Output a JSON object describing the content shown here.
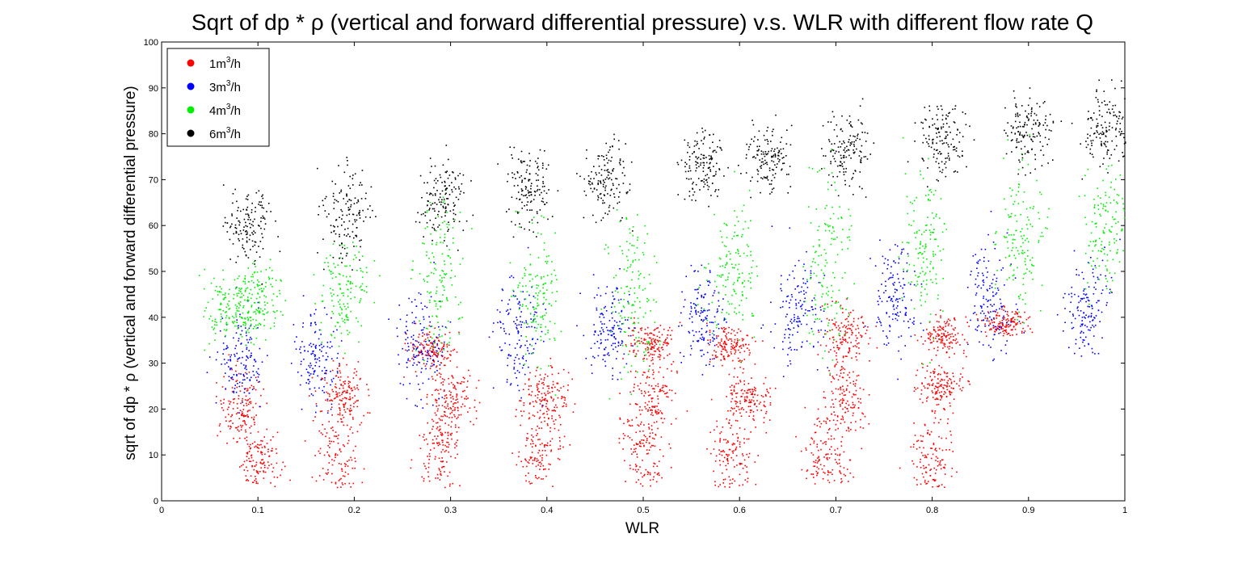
{
  "chart_data": {
    "type": "scatter",
    "title": "Sqrt of dp * ρ (vertical and forward differential pressure) v.s. WLR with different flow rate Q",
    "xlabel": "WLR",
    "ylabel": "sqrt of dp * ρ (vertical and forward differential pressure)",
    "xlim": [
      0,
      1
    ],
    "ylim": [
      0,
      100
    ],
    "x_ticks": [
      "0",
      "0.1",
      "0.2",
      "0.3",
      "0.4",
      "0.5",
      "0.6",
      "0.7",
      "0.8",
      "0.9",
      "1"
    ],
    "y_ticks": [
      "0",
      "10",
      "20",
      "30",
      "40",
      "50",
      "60",
      "70",
      "80",
      "90",
      "100"
    ],
    "grid": false,
    "legend_position": "top-left",
    "series": [
      {
        "name": "1m3/h",
        "label_base": "1m",
        "label_sup": "3",
        "label_unit": "/h",
        "color": "#ff0000",
        "clusters": [
          {
            "wlr": 0.08,
            "y_mean": 21,
            "y_spread": 4
          },
          {
            "wlr": 0.1,
            "y_mean": 9,
            "y_spread": 4
          },
          {
            "wlr": 0.18,
            "y_mean": 12,
            "y_spread": 7
          },
          {
            "wlr": 0.19,
            "y_mean": 23,
            "y_spread": 3
          },
          {
            "wlr": 0.29,
            "y_mean": 11,
            "y_spread": 5
          },
          {
            "wlr": 0.3,
            "y_mean": 23,
            "y_spread": 3
          },
          {
            "wlr": 0.28,
            "y_mean": 33,
            "y_spread": 2
          },
          {
            "wlr": 0.39,
            "y_mean": 11,
            "y_spread": 5
          },
          {
            "wlr": 0.4,
            "y_mean": 23,
            "y_spread": 3
          },
          {
            "wlr": 0.5,
            "y_mean": 10,
            "y_spread": 6
          },
          {
            "wlr": 0.51,
            "y_mean": 23,
            "y_spread": 4
          },
          {
            "wlr": 0.51,
            "y_mean": 35,
            "y_spread": 2
          },
          {
            "wlr": 0.59,
            "y_mean": 9,
            "y_spread": 5
          },
          {
            "wlr": 0.61,
            "y_mean": 23,
            "y_spread": 3
          },
          {
            "wlr": 0.59,
            "y_mean": 34,
            "y_spread": 2
          },
          {
            "wlr": 0.69,
            "y_mean": 10,
            "y_spread": 5
          },
          {
            "wlr": 0.71,
            "y_mean": 22,
            "y_spread": 4
          },
          {
            "wlr": 0.71,
            "y_mean": 36,
            "y_spread": 3
          },
          {
            "wlr": 0.8,
            "y_mean": 10,
            "y_spread": 5
          },
          {
            "wlr": 0.81,
            "y_mean": 25,
            "y_spread": 2
          },
          {
            "wlr": 0.81,
            "y_mean": 36,
            "y_spread": 2
          },
          {
            "wlr": 0.875,
            "y_mean": 39,
            "y_spread": 1.5
          }
        ]
      },
      {
        "name": "3m3/h",
        "label_base": "3m",
        "label_sup": "3",
        "label_unit": "/h",
        "color": "#0000ff",
        "clusters": [
          {
            "wlr": 0.08,
            "y_mean": 32,
            "y_spread": 5
          },
          {
            "wlr": 0.16,
            "y_mean": 32,
            "y_spread": 5
          },
          {
            "wlr": 0.27,
            "y_mean": 34,
            "y_spread": 6
          },
          {
            "wlr": 0.37,
            "y_mean": 37,
            "y_spread": 6
          },
          {
            "wlr": 0.46,
            "y_mean": 38,
            "y_spread": 5
          },
          {
            "wlr": 0.56,
            "y_mean": 40,
            "y_spread": 6
          },
          {
            "wlr": 0.66,
            "y_mean": 42,
            "y_spread": 6
          },
          {
            "wlr": 0.76,
            "y_mean": 44,
            "y_spread": 6
          },
          {
            "wlr": 0.86,
            "y_mean": 45,
            "y_spread": 6
          },
          {
            "wlr": 0.96,
            "y_mean": 42,
            "y_spread": 6
          }
        ]
      },
      {
        "name": "4m3/h",
        "label_base": "4m",
        "label_sup": "3",
        "label_unit": "/h",
        "color": "#00ee00",
        "clusters": [
          {
            "wlr": 0.07,
            "y_mean": 42,
            "y_spread": 4
          },
          {
            "wlr": 0.1,
            "y_mean": 44,
            "y_spread": 4
          },
          {
            "wlr": 0.19,
            "y_mean": 45,
            "y_spread": 5
          },
          {
            "wlr": 0.29,
            "y_mean": 48,
            "y_spread": 8
          },
          {
            "wlr": 0.39,
            "y_mean": 45,
            "y_spread": 8
          },
          {
            "wlr": 0.49,
            "y_mean": 45,
            "y_spread": 9
          },
          {
            "wlr": 0.59,
            "y_mean": 50,
            "y_spread": 8
          },
          {
            "wlr": 0.69,
            "y_mean": 52,
            "y_spread": 9
          },
          {
            "wlr": 0.79,
            "y_mean": 55,
            "y_spread": 9
          },
          {
            "wlr": 0.89,
            "y_mean": 58,
            "y_spread": 8
          },
          {
            "wlr": 0.98,
            "y_mean": 60,
            "y_spread": 7
          }
        ]
      },
      {
        "name": "6m3/h",
        "label_base": "6m",
        "label_sup": "3",
        "label_unit": "/h",
        "color": "#000000",
        "clusters": [
          {
            "wlr": 0.09,
            "y_mean": 60,
            "y_spread": 4
          },
          {
            "wlr": 0.19,
            "y_mean": 62,
            "y_spread": 5
          },
          {
            "wlr": 0.29,
            "y_mean": 66,
            "y_spread": 4
          },
          {
            "wlr": 0.38,
            "y_mean": 68,
            "y_spread": 5
          },
          {
            "wlr": 0.46,
            "y_mean": 70,
            "y_spread": 4
          },
          {
            "wlr": 0.56,
            "y_mean": 73,
            "y_spread": 4
          },
          {
            "wlr": 0.63,
            "y_mean": 75,
            "y_spread": 4
          },
          {
            "wlr": 0.71,
            "y_mean": 77,
            "y_spread": 4
          },
          {
            "wlr": 0.81,
            "y_mean": 79,
            "y_spread": 4
          },
          {
            "wlr": 0.9,
            "y_mean": 81,
            "y_spread": 4
          },
          {
            "wlr": 0.98,
            "y_mean": 81,
            "y_spread": 4
          }
        ]
      }
    ]
  }
}
